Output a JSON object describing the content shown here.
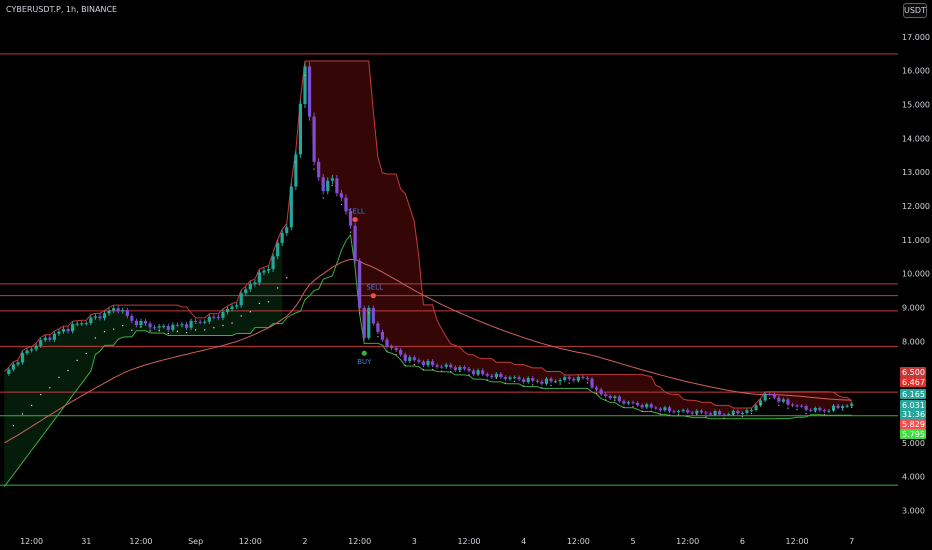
{
  "header": {
    "symbol": "CYBERUSDT.P, 1h, BINANCE",
    "currency": "USDT"
  },
  "colors": {
    "bull": "#26a69a",
    "bear": "#7b4fd6",
    "red": "#c23b3b",
    "green": "#3fae3f",
    "redFill": "#3a0707",
    "greenFill": "#071f0b",
    "ma": "#d06060"
  },
  "chart_data": {
    "type": "candlestick",
    "ylim": [
      2.6,
      17.5
    ],
    "y_ticks": [
      "17.000",
      "16.000",
      "15.000",
      "14.000",
      "13.000",
      "12.000",
      "11.000",
      "10.000",
      "9.000",
      "8.000",
      "7.000",
      "6.000",
      "5.000",
      "4.000",
      "3.000"
    ],
    "y_tick_values": [
      17,
      16,
      15,
      14,
      13,
      12,
      11,
      10,
      9,
      8,
      7,
      6,
      5,
      4,
      3
    ],
    "x_ticks": [
      {
        "label": "12:00",
        "i": 6
      },
      {
        "label": "31",
        "i": 18
      },
      {
        "label": "12:00",
        "i": 30
      },
      {
        "label": "Sep",
        "i": 42
      },
      {
        "label": "12:00",
        "i": 54
      },
      {
        "label": "2",
        "i": 66
      },
      {
        "label": "12:00",
        "i": 78
      },
      {
        "label": "3",
        "i": 90
      },
      {
        "label": "12:00",
        "i": 102
      },
      {
        "label": "4",
        "i": 114
      },
      {
        "label": "12:00",
        "i": 126
      },
      {
        "label": "5",
        "i": 138
      },
      {
        "label": "12:00",
        "i": 150
      },
      {
        "label": "6",
        "i": 162
      },
      {
        "label": "12:00",
        "i": 174
      },
      {
        "label": "7",
        "i": 186
      }
    ],
    "n_bars": 187,
    "closes_key": [
      [
        0,
        7.0
      ],
      [
        4,
        7.6
      ],
      [
        8,
        8.0
      ],
      [
        14,
        8.4
      ],
      [
        20,
        8.7
      ],
      [
        25,
        9.0
      ],
      [
        28,
        8.6
      ],
      [
        34,
        8.4
      ],
      [
        40,
        8.5
      ],
      [
        46,
        8.7
      ],
      [
        50,
        9.0
      ],
      [
        54,
        9.7
      ],
      [
        58,
        10.2
      ],
      [
        62,
        11.5
      ],
      [
        64,
        13.5
      ],
      [
        65,
        15.0
      ],
      [
        66,
        16.3
      ],
      [
        67,
        14.5
      ],
      [
        68,
        13.3
      ],
      [
        70,
        12.5
      ],
      [
        72,
        12.8
      ],
      [
        74,
        12.2
      ],
      [
        76,
        11.4
      ],
      [
        77,
        10.5
      ],
      [
        78,
        8.9
      ],
      [
        79,
        8.1
      ],
      [
        80,
        9.0
      ],
      [
        82,
        8.2
      ],
      [
        84,
        7.9
      ],
      [
        88,
        7.5
      ],
      [
        94,
        7.3
      ],
      [
        100,
        7.2
      ],
      [
        106,
        7.0
      ],
      [
        112,
        6.9
      ],
      [
        118,
        6.8
      ],
      [
        124,
        6.9
      ],
      [
        128,
        6.9
      ],
      [
        130,
        6.5
      ],
      [
        136,
        6.2
      ],
      [
        140,
        6.1
      ],
      [
        146,
        5.95
      ],
      [
        152,
        5.9
      ],
      [
        158,
        5.85
      ],
      [
        164,
        5.95
      ],
      [
        166,
        6.3
      ],
      [
        168,
        6.45
      ],
      [
        170,
        6.25
      ],
      [
        176,
        6.0
      ],
      [
        180,
        5.95
      ],
      [
        184,
        6.1
      ],
      [
        186,
        6.1
      ]
    ],
    "h_lines": [
      {
        "value": 16.5,
        "color": "red"
      },
      {
        "value": 9.7,
        "color": "red"
      },
      {
        "value": 9.35,
        "color": "red"
      },
      {
        "value": 8.9,
        "color": "red"
      },
      {
        "value": 7.85,
        "color": "red"
      },
      {
        "value": 6.5,
        "color": "red"
      },
      {
        "value": 5.8,
        "color": "green"
      },
      {
        "value": 3.75,
        "color": "green"
      }
    ],
    "signals": [
      {
        "label": "SELL",
        "i": 77,
        "price": 11.6,
        "type": "sell"
      },
      {
        "label": "SELL",
        "i": 81,
        "price": 9.35,
        "type": "sell"
      },
      {
        "label": "BUY",
        "i": 79,
        "price": 7.65,
        "type": "buy"
      }
    ],
    "price_badges": [
      {
        "label": "6.500",
        "value": 6.5,
        "color": "#c23b3b"
      },
      {
        "label": "6.467",
        "value": 6.467,
        "color": "#e0302b"
      },
      {
        "label": "6.165",
        "value": 6.165,
        "color": "#26a69a"
      },
      {
        "label": "6.031",
        "value": 6.031,
        "color": "#26a69a"
      },
      {
        "label": "31:36",
        "value": 5.85,
        "color": "#26a69a"
      },
      {
        "label": "5.829",
        "value": 5.829,
        "color": "#f05050"
      },
      {
        "label": "5.795",
        "value": 5.795,
        "color": "#3fdd3f"
      }
    ]
  }
}
